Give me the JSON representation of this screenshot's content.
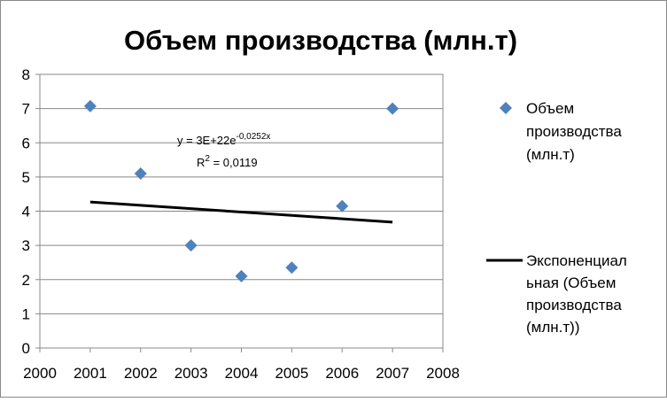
{
  "chart_data": {
    "type": "scatter",
    "title": "Объем производства (млн.т)",
    "xlabel": "",
    "ylabel": "",
    "xlim": [
      2000,
      2008
    ],
    "ylim": [
      0,
      8
    ],
    "x_ticks": [
      2000,
      2001,
      2002,
      2003,
      2004,
      2005,
      2006,
      2007,
      2008
    ],
    "y_ticks": [
      0,
      1,
      2,
      3,
      4,
      5,
      6,
      7,
      8
    ],
    "grid": "horizontal",
    "legend_position": "right",
    "series": [
      {
        "name": "Объем производства (млн.т)",
        "legend_lines": [
          "Объем",
          "производства",
          "(млн.т)"
        ],
        "marker": "diamond",
        "color": "#4F81BD",
        "x": [
          2001,
          2002,
          2003,
          2004,
          2005,
          2006,
          2007
        ],
        "y": [
          7.07,
          5.1,
          3.0,
          2.1,
          2.35,
          4.15,
          7.0
        ]
      }
    ],
    "trendline": {
      "name": "Экспоненциальная (Объем производства (млн.т))",
      "legend_lines": [
        "Экспоненциал",
        "ьная (Объем",
        "производства",
        "(млн.т))"
      ],
      "type": "exponential",
      "color": "#000000",
      "x": [
        2001,
        2007
      ],
      "y": [
        4.27,
        3.68
      ],
      "equation_main": "y = 3E+22e",
      "equation_exp": "-0,0252x",
      "r2_label": "R",
      "r2_sup": "2",
      "r2_value": " = 0,0119"
    }
  }
}
